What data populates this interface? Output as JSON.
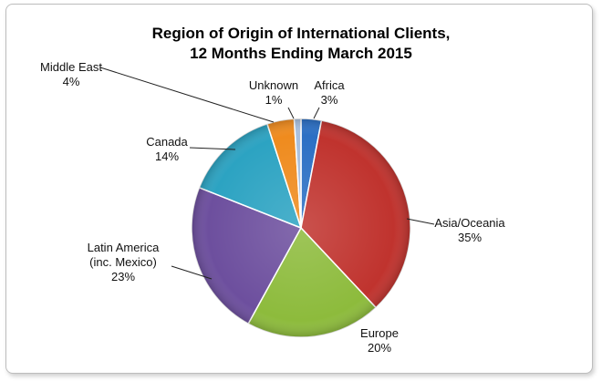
{
  "chart_data": {
    "type": "pie",
    "title": "Region of Origin of International Clients,",
    "subtitle": "12 Months Ending March 2015",
    "slices": [
      {
        "name": "Africa",
        "value": 3,
        "pct_label": "3%",
        "color": "#2b6fc4"
      },
      {
        "name": "Asia/Oceania",
        "value": 35,
        "pct_label": "35%",
        "color": "#c0332e"
      },
      {
        "name": "Europe",
        "value": 20,
        "pct_label": "20%",
        "color": "#8dbb3c"
      },
      {
        "name": "Latin America",
        "name_line2": "(inc. Mexico)",
        "value": 23,
        "pct_label": "23%",
        "color": "#6d4f9e"
      },
      {
        "name": "Canada",
        "value": 14,
        "pct_label": "14%",
        "color": "#2ca3c2"
      },
      {
        "name": "Middle East",
        "value": 4,
        "pct_label": "4%",
        "color": "#ef8b1e"
      },
      {
        "name": "Unknown",
        "value": 1,
        "pct_label": "1%",
        "color": "#a9c0de"
      }
    ],
    "legend": "none",
    "labels": "outside with leader lines"
  }
}
